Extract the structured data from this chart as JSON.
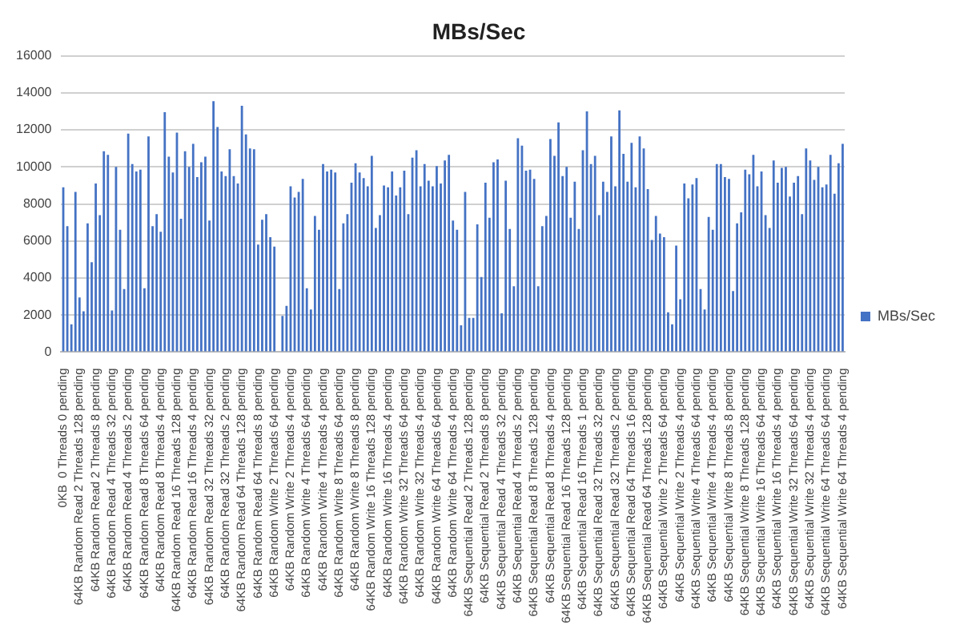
{
  "chart_data": {
    "type": "bar",
    "title": "MBs/Sec",
    "categories": [
      "0KB  0 Threads 0 pending",
      null,
      null,
      null,
      "64KB Random Read 2 Threads 128 pending",
      null,
      null,
      null,
      "64KB Random Read 2 Threads 8 pending",
      null,
      null,
      null,
      "64KB Random Read 4 Threads 32 pending",
      null,
      null,
      null,
      "64KB Random Read 4 Threads 2 pending",
      null,
      null,
      null,
      "64KB Random Read 8 Threads 64 pending",
      null,
      null,
      null,
      "64KB Random Read 8 Threads 4 pending",
      null,
      null,
      null,
      "64KB Random Read 16 Threads 128 pending",
      null,
      null,
      null,
      "64KB Random Read 16 Threads 4 pending",
      null,
      null,
      null,
      "64KB Random Read 32 Threads 32 pending",
      null,
      null,
      null,
      "64KB Random Read 32 Threads 2 pending",
      null,
      null,
      null,
      "64KB Random Read 64 Threads 128 pending",
      null,
      null,
      null,
      "64KB Random Read 64 Threads 8 pending",
      null,
      null,
      null,
      "64KB Random Write 2 Threads 64 pending",
      null,
      null,
      null,
      "64KB Random Write 2 Threads 4 pending",
      null,
      null,
      null,
      "64KB Random Write 4 Threads 64 pending",
      null,
      null,
      null,
      "64KB Random Write 4 Threads 4 pending",
      null,
      null,
      null,
      "64KB Random Write 8 Threads 64 pending",
      null,
      null,
      null,
      "64KB Random Write 8 Threads 8 pending",
      null,
      null,
      null,
      "64KB Random Write 16 Threads 128 pending",
      null,
      null,
      null,
      "64KB Random Write 16 Threads 4 pending",
      null,
      null,
      null,
      "64KB Random Write 32 Threads 64 pending",
      null,
      null,
      null,
      "64KB Random Write 32 Threads 4 pending",
      null,
      null,
      null,
      "64KB Random Write 64 Threads 64 pending",
      null,
      null,
      null,
      "64KB Random Write 64 Threads 4 pending",
      null,
      null,
      null,
      "64KB Sequential Read 2 Threads 128 pending",
      null,
      null,
      null,
      "64KB Sequential Read 2 Threads 8 pending",
      null,
      null,
      null,
      "64KB Sequential Read 4 Threads 32 pending",
      null,
      null,
      null,
      "64KB Sequential Read 4 Threads 2 pending",
      null,
      null,
      null,
      "64KB Sequential Read 8 Threads 128 pending",
      null,
      null,
      null,
      "64KB Sequential Read 8 Threads 4 pending",
      null,
      null,
      null,
      "64KB Sequential Read 16 Threads 128 pending",
      null,
      null,
      null,
      "64KB Sequential Read 16 Threads 1 pending",
      null,
      null,
      null,
      "64KB Sequential Read 32 Threads 32 pending",
      null,
      null,
      null,
      "64KB Sequential Read 32 Threads 2 pending",
      null,
      null,
      null,
      "64KB Sequential Read 64 Threads 16 pending",
      null,
      null,
      null,
      "64KB Sequential Read 64 Threads 128 pending",
      null,
      null,
      null,
      "64KB Sequential Write 2 Threads 64 pending",
      null,
      null,
      null,
      "64KB Sequential Write 2 Threads 4 pending",
      null,
      null,
      null,
      "64KB Sequential Write 4 Threads 64 pending",
      null,
      null,
      null,
      "64KB Sequential Write 4 Threads 4 pending",
      null,
      null,
      null,
      "64KB Sequential Write 8 Threads 8 pending",
      null,
      null,
      null,
      "64KB Sequential Write 8 Threads 128 pending",
      null,
      null,
      null,
      "64KB Sequential Write 16 Threads 64 pending",
      null,
      null,
      null,
      "64KB Sequential Write 16 Threads 4 pending",
      null,
      null,
      null,
      "64KB Sequential Write 32 Threads 64 pending",
      null,
      null,
      null,
      "64KB Sequential Write 32 Threads 4 pending",
      null,
      null,
      null,
      "64KB Sequential Write 64 Threads 64 pending",
      null,
      null,
      null,
      "64KB Sequential Write 64 Threads 4 pending"
    ],
    "series": [
      {
        "name": "MBs/Sec",
        "color": "#4472c4",
        "values": [
          8900,
          6800,
          1500,
          8650,
          2950,
          2200,
          6950,
          4850,
          9100,
          7400,
          10850,
          10650,
          2250,
          10000,
          6600,
          3400,
          11800,
          10150,
          9750,
          9850,
          3450,
          11650,
          6800,
          7450,
          6500,
          12950,
          10550,
          9700,
          11850,
          7200,
          10850,
          10000,
          11250,
          9450,
          10250,
          10550,
          7100,
          13550,
          12150,
          9750,
          9500,
          10950,
          9500,
          9100,
          13300,
          11750,
          11000,
          10950,
          5800,
          7150,
          7450,
          6200,
          5700,
          0,
          1950,
          2500,
          8950,
          8350,
          8650,
          9350,
          3450,
          2300,
          7350,
          6600,
          10150,
          9750,
          9850,
          9700,
          3400,
          6950,
          7450,
          9150,
          10200,
          9700,
          9400,
          8950,
          10600,
          6700,
          7400,
          9000,
          8900,
          9750,
          8450,
          8900,
          9800,
          7450,
          10500,
          10900,
          8950,
          10150,
          9250,
          8950,
          10050,
          9100,
          10350,
          10650,
          7100,
          6600,
          1450,
          8650,
          1850,
          1850,
          6900,
          4050,
          9150,
          7250,
          10250,
          10400,
          2100,
          9250,
          6650,
          3550,
          11550,
          11150,
          9800,
          9850,
          9350,
          3550,
          6800,
          7350,
          11500,
          10600,
          12400,
          9500,
          10000,
          7250,
          9200,
          6650,
          10900,
          13000,
          10150,
          10600,
          7400,
          9200,
          8650,
          11650,
          8950,
          13050,
          10700,
          9200,
          11300,
          8900,
          11650,
          11000,
          8800,
          6050,
          7350,
          6400,
          6200,
          2150,
          1500,
          5750,
          2850,
          9100,
          8300,
          9050,
          9400,
          3400,
          2300,
          7300,
          6600,
          10150,
          10150,
          9450,
          9350,
          3300,
          6950,
          7550,
          9850,
          9600,
          10650,
          8950,
          9750,
          7400,
          6700,
          10350,
          9150,
          9950,
          10000,
          8400,
          9150,
          9500,
          7450,
          11000,
          10350,
          9300,
          10000,
          8900,
          9050,
          10650,
          8550,
          10200,
          11250
        ]
      }
    ],
    "ylim": [
      0,
      16000
    ],
    "yticks": [
      0,
      2000,
      4000,
      6000,
      8000,
      10000,
      12000,
      14000,
      16000
    ],
    "grid": "y",
    "legend": "right"
  }
}
